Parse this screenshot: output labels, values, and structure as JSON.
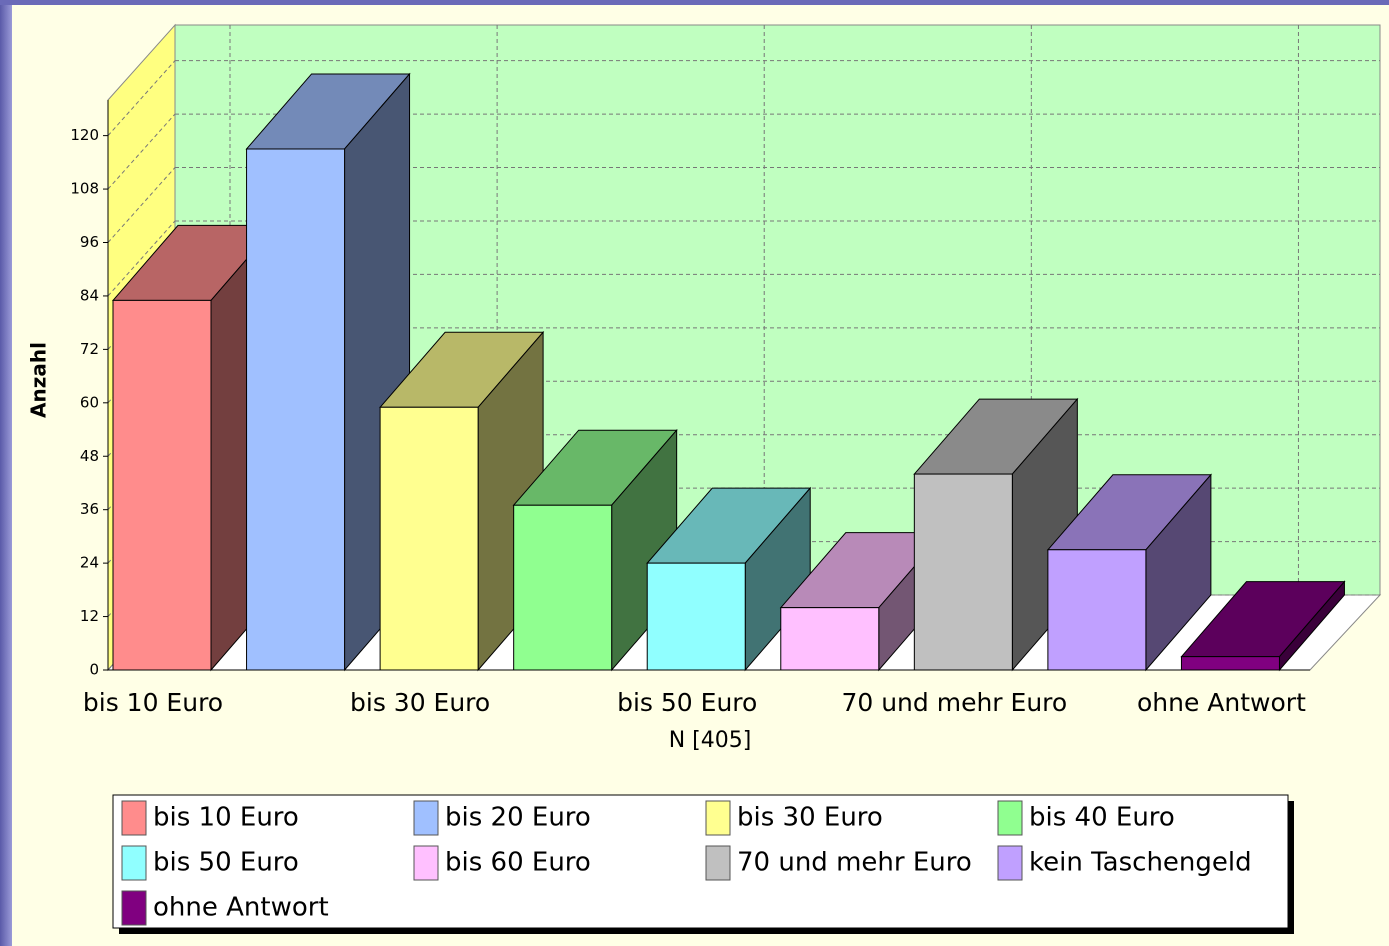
{
  "chart_data": {
    "type": "bar3d",
    "y_label": "Anzahl",
    "x_label": "N [405]",
    "categories": [
      "bis 10 Euro",
      null,
      "bis 30 Euro",
      null,
      "bis 50 Euro",
      null,
      "70 und mehr Euro",
      null,
      "ohne Antwort"
    ],
    "values": [
      83,
      117,
      59,
      37,
      24,
      14,
      44,
      27,
      3
    ],
    "legend": [
      "bis 10 Euro",
      "bis 20 Euro",
      "bis 30 Euro",
      "bis 40 Euro",
      "bis 50 Euro",
      "bis 60 Euro",
      "70 und mehr Euro",
      "kein Taschengeld",
      "ohne Antwort"
    ],
    "colors": [
      "#ff8c8c",
      "#a0c0ff",
      "#ffff90",
      "#90ff90",
      "#90ffff",
      "#ffc0ff",
      "#c0c0c0",
      "#c0a0ff",
      "#800080"
    ],
    "ylim": [
      0,
      128
    ],
    "yticks": [
      0,
      12,
      24,
      36,
      48,
      60,
      72,
      84,
      96,
      108,
      120
    ],
    "grid": true
  }
}
